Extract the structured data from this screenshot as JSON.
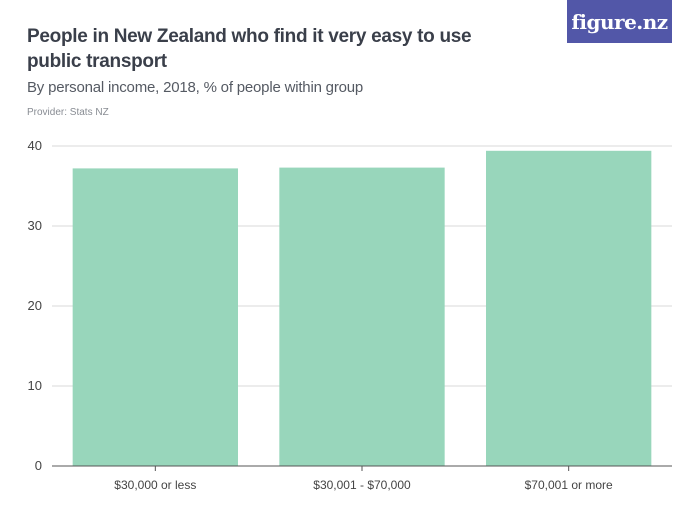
{
  "header": {
    "title": "People in New Zealand who find it very easy to use public transport",
    "subtitle": "By personal income, 2018, % of people within group",
    "provider": "Provider: Stats NZ",
    "logo_text": "figure.nz"
  },
  "colors": {
    "bar": "#98d6bb",
    "grid": "#d9d9d9",
    "axis": "#555555",
    "logo_bg": "#5257a8"
  },
  "chart_data": {
    "type": "bar",
    "title": "People in New Zealand who find it very easy to use public transport",
    "subtitle": "By personal income, 2018, % of people within group",
    "categories": [
      "$30,000 or less",
      "$30,001 - $70,000",
      "$70,001 or more"
    ],
    "values": [
      37.2,
      37.3,
      39.4
    ],
    "ylim": [
      0,
      40
    ],
    "yticks": [
      0,
      10,
      20,
      30,
      40
    ],
    "xlabel": "",
    "ylabel": "",
    "grid": true,
    "legend": "none"
  }
}
